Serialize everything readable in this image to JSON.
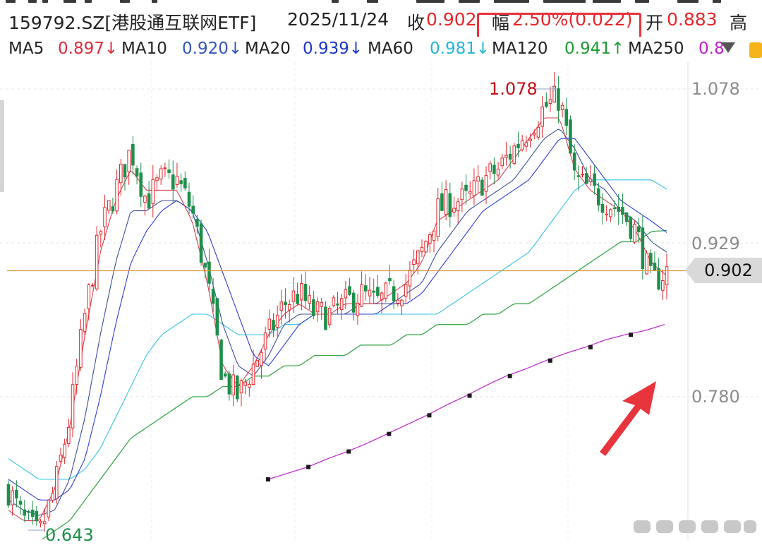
{
  "header": {
    "symbol": "159792.SZ[港股通互联网ETF]",
    "date": "2025/11/24",
    "close_label": "收",
    "close_value": "0.902",
    "change_label": "幅",
    "change_value": "2.50%(0.022)",
    "open_label": "开",
    "open_value": "0.883",
    "high_label": "高"
  },
  "ma_row": [
    {
      "label": "MA5",
      "value": "0.897↓",
      "color": "#e02a3a"
    },
    {
      "label": "MA10",
      "value": "0.920↓",
      "color": "#3355bb"
    },
    {
      "label": "MA20",
      "value": "0.939↓",
      "color": "#1a36c8"
    },
    {
      "label": "MA60",
      "value": "0.981↓",
      "color": "#21b6d8"
    },
    {
      "label": "MA120",
      "value": "0.941↑",
      "color": "#1d9b34"
    },
    {
      "label": "MA250",
      "value": "0.8",
      "color": "#c020c8"
    }
  ],
  "colors": {
    "up": "#e6262a",
    "down": "#1e8f4a",
    "ma5": "#d9404f",
    "ma10": "#3b4f9a",
    "ma20": "#2b3fd6",
    "ma60": "#35c3e8",
    "ma120": "#3aa84a",
    "ma250": "#c030d0",
    "price_line": "#d89a3a",
    "annotation": "#e8343c"
  },
  "icons": [
    "dropdown-triangle-icon",
    "lock-icon",
    "annotation-arrow-icon",
    "watermark-icon"
  ],
  "chart_data": {
    "type": "candlestick",
    "y_axis": {
      "range": [
        0.62,
        1.1
      ],
      "ticks": [
        "1.078",
        "0.929",
        "0.780"
      ]
    },
    "current_price": "0.902",
    "highest": "1.078",
    "lowest": "0.643",
    "grid": true,
    "price_waypoints": [
      0.69,
      0.66,
      0.645,
      0.69,
      0.76,
      0.86,
      0.94,
      0.98,
      1.02,
      0.97,
      0.99,
      0.99,
      0.96,
      0.89,
      0.8,
      0.78,
      0.81,
      0.84,
      0.87,
      0.88,
      0.86,
      0.86,
      0.87,
      0.88,
      0.87,
      0.88,
      0.89,
      0.92,
      0.96,
      0.97,
      0.97,
      0.99,
      1.0,
      1.02,
      1.04,
      1.06,
      1.07,
      0.99,
      0.98,
      0.97,
      0.96,
      0.94,
      0.89,
      0.902
    ],
    "ma_lines": {
      "ma5": [
        0.67,
        0.66,
        0.66,
        0.69,
        0.75,
        0.84,
        0.92,
        0.97,
        1.0,
        0.98,
        0.98,
        0.98,
        0.95,
        0.89,
        0.81,
        0.79,
        0.81,
        0.84,
        0.86,
        0.87,
        0.86,
        0.86,
        0.87,
        0.87,
        0.87,
        0.88,
        0.89,
        0.91,
        0.95,
        0.96,
        0.97,
        0.98,
        0.99,
        1.01,
        1.03,
        1.05,
        1.05,
        1.0,
        0.98,
        0.97,
        0.96,
        0.94,
        0.91,
        0.897
      ],
      "ma10": [
        0.68,
        0.67,
        0.665,
        0.67,
        0.7,
        0.76,
        0.84,
        0.91,
        0.96,
        0.96,
        0.97,
        0.97,
        0.96,
        0.91,
        0.85,
        0.81,
        0.8,
        0.82,
        0.85,
        0.86,
        0.86,
        0.86,
        0.86,
        0.87,
        0.87,
        0.87,
        0.88,
        0.89,
        0.92,
        0.94,
        0.96,
        0.97,
        0.98,
        0.99,
        1.01,
        1.03,
        1.04,
        1.02,
        0.99,
        0.98,
        0.96,
        0.95,
        0.93,
        0.92
      ],
      "ma20": [
        0.7,
        0.69,
        0.68,
        0.68,
        0.69,
        0.72,
        0.78,
        0.85,
        0.91,
        0.94,
        0.96,
        0.97,
        0.96,
        0.94,
        0.9,
        0.86,
        0.82,
        0.81,
        0.83,
        0.85,
        0.86,
        0.86,
        0.86,
        0.86,
        0.86,
        0.87,
        0.87,
        0.88,
        0.9,
        0.92,
        0.94,
        0.96,
        0.97,
        0.98,
        0.99,
        1.01,
        1.03,
        1.03,
        1.01,
        0.99,
        0.97,
        0.96,
        0.95,
        0.939
      ],
      "ma60": [
        0.72,
        0.71,
        0.7,
        0.7,
        0.7,
        0.71,
        0.73,
        0.76,
        0.79,
        0.82,
        0.84,
        0.85,
        0.86,
        0.86,
        0.85,
        0.84,
        0.84,
        0.84,
        0.85,
        0.85,
        0.86,
        0.86,
        0.86,
        0.86,
        0.86,
        0.86,
        0.86,
        0.86,
        0.86,
        0.87,
        0.88,
        0.89,
        0.9,
        0.91,
        0.92,
        0.94,
        0.96,
        0.98,
        0.99,
        0.99,
        0.99,
        0.99,
        0.99,
        0.981
      ],
      "ma120": [
        0.62,
        0.63,
        0.64,
        0.65,
        0.66,
        0.68,
        0.7,
        0.72,
        0.74,
        0.75,
        0.76,
        0.77,
        0.78,
        0.78,
        0.79,
        0.79,
        0.8,
        0.8,
        0.81,
        0.81,
        0.82,
        0.82,
        0.82,
        0.83,
        0.83,
        0.83,
        0.84,
        0.84,
        0.85,
        0.85,
        0.85,
        0.86,
        0.86,
        0.87,
        0.87,
        0.88,
        0.89,
        0.9,
        0.91,
        0.92,
        0.93,
        0.93,
        0.94,
        0.941
      ],
      "ma250": [
        0.7,
        0.706,
        0.712,
        0.72,
        0.727,
        0.735,
        0.744,
        0.753,
        0.762,
        0.772,
        0.781,
        0.791,
        0.8,
        0.807,
        0.815,
        0.822,
        0.828,
        0.835,
        0.84,
        0.844,
        0.85
      ]
    },
    "ma250_markers": [
      0.7,
      0.712,
      0.727,
      0.744,
      0.762,
      0.781,
      0.8,
      0.815,
      0.828,
      0.84
    ]
  }
}
